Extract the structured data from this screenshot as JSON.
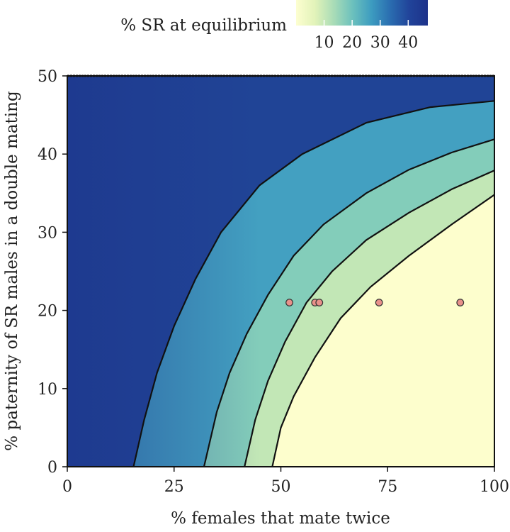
{
  "chart_data": {
    "type": "heatmap",
    "title": "",
    "xlabel": "% females that mate twice",
    "ylabel": "% paternity of SR males in a double mating",
    "xlim": [
      0,
      100
    ],
    "ylim": [
      0,
      50
    ],
    "x_ticks": [
      0,
      25,
      50,
      75,
      100
    ],
    "y_ticks": [
      0,
      10,
      20,
      30,
      40,
      50
    ],
    "grid": false,
    "colorbar": {
      "label": "% SR at equilibrium",
      "ticks": [
        10,
        20,
        30,
        40
      ],
      "range": [
        0,
        47
      ],
      "colors": [
        "#fdfed0",
        "#e2f3b9",
        "#a9dcb7",
        "#6cc1bd",
        "#3d9cc0",
        "#2a6db0",
        "#21449a",
        "#1d328a"
      ],
      "placement": "top"
    },
    "contours": [
      {
        "points": [
          [
            15.5,
            0
          ],
          [
            18,
            6
          ],
          [
            21,
            12
          ],
          [
            25,
            18
          ],
          [
            30,
            24
          ],
          [
            36,
            30
          ],
          [
            45,
            36
          ],
          [
            55,
            40
          ],
          [
            70,
            44
          ],
          [
            85,
            46
          ],
          [
            100,
            46.8
          ]
        ]
      },
      {
        "points": [
          [
            32,
            0
          ],
          [
            35,
            7
          ],
          [
            38,
            12
          ],
          [
            42,
            17
          ],
          [
            47,
            22
          ],
          [
            53,
            27
          ],
          [
            60,
            31
          ],
          [
            70,
            35
          ],
          [
            80,
            38
          ],
          [
            90,
            40.2
          ],
          [
            100,
            41.9
          ]
        ]
      },
      {
        "points": [
          [
            41.5,
            0
          ],
          [
            44,
            6
          ],
          [
            47,
            11
          ],
          [
            51,
            16
          ],
          [
            56,
            21
          ],
          [
            62,
            25
          ],
          [
            70,
            29
          ],
          [
            80,
            32.5
          ],
          [
            90,
            35.5
          ],
          [
            100,
            37.9
          ]
        ]
      },
      {
        "points": [
          [
            48,
            0
          ],
          [
            50,
            5
          ],
          [
            53,
            9
          ],
          [
            58,
            14
          ],
          [
            64,
            19
          ],
          [
            71,
            23
          ],
          [
            80,
            27
          ],
          [
            90,
            31
          ],
          [
            100,
            34.8
          ]
        ]
      }
    ],
    "points": {
      "color": "#e8918a",
      "values": [
        [
          52,
          21
        ],
        [
          58,
          21
        ],
        [
          59,
          21
        ],
        [
          73,
          21
        ],
        [
          92,
          21
        ]
      ]
    }
  }
}
